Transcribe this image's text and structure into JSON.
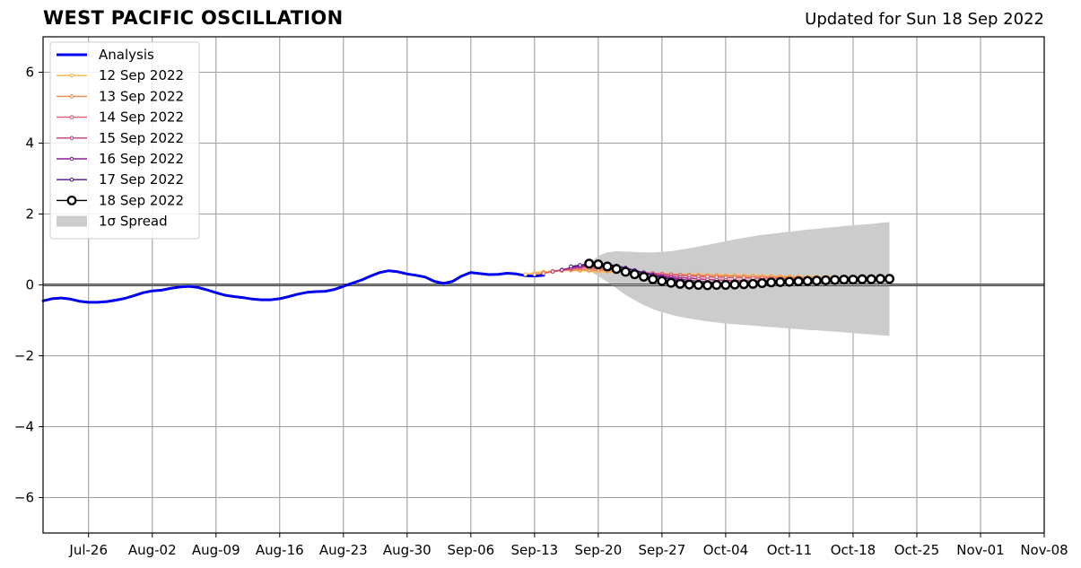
{
  "title": "WEST PACIFIC OSCILLATION",
  "subtitle": "Updated for Sun 18 Sep 2022",
  "chart_data": {
    "type": "line",
    "title": "WEST PACIFIC OSCILLATION",
    "subtitle": "Updated for Sun 18 Sep 2022",
    "x_axis": {
      "type": "date",
      "min": "2022-07-21",
      "max": "2022-11-08",
      "ticks": [
        "2022-07-26",
        "2022-08-02",
        "2022-08-09",
        "2022-08-16",
        "2022-08-23",
        "2022-08-30",
        "2022-09-06",
        "2022-09-13",
        "2022-09-20",
        "2022-09-27",
        "2022-10-04",
        "2022-10-11",
        "2022-10-18",
        "2022-10-25",
        "2022-11-01",
        "2022-11-08"
      ],
      "tick_labels": [
        "Jul-26",
        "Aug-02",
        "Aug-09",
        "Aug-16",
        "Aug-23",
        "Aug-30",
        "Sep-06",
        "Sep-13",
        "Sep-20",
        "Sep-27",
        "Oct-04",
        "Oct-11",
        "Oct-18",
        "Oct-25",
        "Nov-01",
        "Nov-08"
      ]
    },
    "y_axis": {
      "min": -7,
      "max": 7,
      "ticks": [
        -6,
        -4,
        -2,
        0,
        2,
        4,
        6
      ],
      "tick_labels": [
        "−6",
        "−4",
        "−2",
        "0",
        "2",
        "4",
        "6"
      ]
    },
    "grid": true,
    "zero_line": true,
    "legend": {
      "position": "top-left",
      "entries": [
        "Analysis",
        "12 Sep 2022",
        "13 Sep 2022",
        "14 Sep 2022",
        "15 Sep 2022",
        "16 Sep 2022",
        "17 Sep 2022",
        "18 Sep 2022",
        "1σ Spread"
      ]
    },
    "analysis": {
      "name": "Analysis",
      "color": "#0000ee",
      "x": [
        "2022-07-21",
        "2022-07-22",
        "2022-07-23",
        "2022-07-24",
        "2022-07-25",
        "2022-07-26",
        "2022-07-27",
        "2022-07-28",
        "2022-07-29",
        "2022-07-30",
        "2022-07-31",
        "2022-08-01",
        "2022-08-02",
        "2022-08-03",
        "2022-08-04",
        "2022-08-05",
        "2022-08-06",
        "2022-08-07",
        "2022-08-08",
        "2022-08-09",
        "2022-08-10",
        "2022-08-11",
        "2022-08-12",
        "2022-08-13",
        "2022-08-14",
        "2022-08-15",
        "2022-08-16",
        "2022-08-17",
        "2022-08-18",
        "2022-08-19",
        "2022-08-20",
        "2022-08-21",
        "2022-08-22",
        "2022-08-23",
        "2022-08-24",
        "2022-08-25",
        "2022-08-26",
        "2022-08-27",
        "2022-08-28",
        "2022-08-29",
        "2022-08-30",
        "2022-08-31",
        "2022-09-01",
        "2022-09-02",
        "2022-09-03",
        "2022-09-04",
        "2022-09-05",
        "2022-09-06",
        "2022-09-07",
        "2022-09-08",
        "2022-09-09",
        "2022-09-10",
        "2022-09-11",
        "2022-09-12",
        "2022-09-13",
        "2022-09-14"
      ],
      "y": [
        -0.45,
        -0.39,
        -0.37,
        -0.4,
        -0.46,
        -0.49,
        -0.49,
        -0.47,
        -0.43,
        -0.38,
        -0.3,
        -0.22,
        -0.17,
        -0.15,
        -0.1,
        -0.06,
        -0.04,
        -0.07,
        -0.14,
        -0.22,
        -0.29,
        -0.33,
        -0.36,
        -0.4,
        -0.42,
        -0.42,
        -0.39,
        -0.33,
        -0.26,
        -0.21,
        -0.19,
        -0.18,
        -0.13,
        -0.04,
        0.05,
        0.14,
        0.25,
        0.35,
        0.4,
        0.37,
        0.31,
        0.27,
        0.22,
        0.1,
        0.04,
        0.1,
        0.25,
        0.35,
        0.32,
        0.29,
        0.3,
        0.33,
        0.31,
        0.26,
        0.25,
        0.27
      ]
    },
    "forecasts": [
      {
        "name": "12 Sep 2022",
        "color": "#f9b640",
        "start": "2022-09-12",
        "values": [
          0.3,
          0.34,
          0.37,
          0.39,
          0.4,
          0.41,
          0.4,
          0.39,
          0.38,
          0.37,
          0.36,
          0.35,
          0.34,
          0.33,
          0.32,
          0.31,
          0.3,
          0.3,
          0.29,
          0.29,
          0.28,
          0.28,
          0.27,
          0.27,
          0.26,
          0.26,
          0.25,
          0.25,
          0.24,
          0.24,
          0.23,
          0.23,
          0.23,
          0.22,
          0.22
        ]
      },
      {
        "name": "13 Sep 2022",
        "color": "#f08a4b",
        "start": "2022-09-13",
        "values": [
          0.3,
          0.33,
          0.37,
          0.4,
          0.42,
          0.43,
          0.42,
          0.41,
          0.4,
          0.38,
          0.37,
          0.35,
          0.34,
          0.32,
          0.31,
          0.3,
          0.29,
          0.28,
          0.27,
          0.27,
          0.26,
          0.25,
          0.25,
          0.24,
          0.24,
          0.23,
          0.23,
          0.22,
          0.22,
          0.22,
          0.21,
          0.21,
          0.21,
          0.2,
          0.2
        ]
      },
      {
        "name": "14 Sep 2022",
        "color": "#e0586a",
        "start": "2022-09-14",
        "values": [
          0.33,
          0.38,
          0.42,
          0.45,
          0.47,
          0.47,
          0.46,
          0.44,
          0.42,
          0.4,
          0.37,
          0.35,
          0.33,
          0.31,
          0.29,
          0.27,
          0.26,
          0.24,
          0.23,
          0.22,
          0.21,
          0.21,
          0.2,
          0.19,
          0.19,
          0.19,
          0.18,
          0.18,
          0.18,
          0.18,
          0.18,
          0.18,
          0.18,
          0.18,
          0.19
        ]
      },
      {
        "name": "15 Sep 2022",
        "color": "#c2377e",
        "start": "2022-09-15",
        "values": [
          0.38,
          0.43,
          0.48,
          0.51,
          0.52,
          0.51,
          0.49,
          0.46,
          0.42,
          0.38,
          0.34,
          0.3,
          0.27,
          0.24,
          0.21,
          0.19,
          0.17,
          0.15,
          0.14,
          0.13,
          0.12,
          0.12,
          0.11,
          0.11,
          0.11,
          0.11,
          0.11,
          0.12,
          0.12,
          0.12,
          0.13,
          0.13,
          0.14,
          0.14,
          0.15
        ]
      },
      {
        "name": "16 Sep 2022",
        "color": "#8c1f97",
        "start": "2022-09-16",
        "values": [
          0.42,
          0.48,
          0.53,
          0.56,
          0.57,
          0.55,
          0.52,
          0.47,
          0.41,
          0.35,
          0.29,
          0.24,
          0.2,
          0.16,
          0.13,
          0.1,
          0.08,
          0.06,
          0.05,
          0.05,
          0.05,
          0.05,
          0.05,
          0.06,
          0.07,
          0.08,
          0.09,
          0.1,
          0.11,
          0.12,
          0.13,
          0.14,
          0.15,
          0.15,
          0.16
        ]
      },
      {
        "name": "17 Sep 2022",
        "color": "#4b1089",
        "start": "2022-09-17",
        "values": [
          0.52,
          0.56,
          0.59,
          0.6,
          0.58,
          0.54,
          0.48,
          0.41,
          0.34,
          0.27,
          0.21,
          0.16,
          0.12,
          0.08,
          0.06,
          0.04,
          0.03,
          0.02,
          0.02,
          0.03,
          0.04,
          0.05,
          0.06,
          0.07,
          0.08,
          0.1,
          0.11,
          0.12,
          0.13,
          0.14,
          0.15,
          0.16,
          0.17,
          0.17,
          0.18
        ]
      },
      {
        "name": "18 Sep 2022",
        "color": "#000000",
        "start": "2022-09-19",
        "values": [
          0.6,
          0.58,
          0.52,
          0.45,
          0.37,
          0.3,
          0.23,
          0.16,
          0.11,
          0.06,
          0.03,
          0.01,
          0.0,
          -0.01,
          0.0,
          0.0,
          0.01,
          0.02,
          0.03,
          0.05,
          0.07,
          0.08,
          0.09,
          0.1,
          0.11,
          0.12,
          0.13,
          0.14,
          0.15,
          0.15,
          0.16,
          0.16,
          0.17,
          0.17
        ]
      }
    ],
    "spread": {
      "name": "1σ Spread",
      "color": "#cccccc",
      "start": "2022-09-19",
      "upper": [
        0.6,
        0.82,
        0.92,
        0.95,
        0.94,
        0.93,
        0.92,
        0.92,
        0.93,
        0.95,
        0.99,
        1.03,
        1.08,
        1.13,
        1.18,
        1.23,
        1.28,
        1.33,
        1.37,
        1.41,
        1.44,
        1.47,
        1.5,
        1.53,
        1.56,
        1.58,
        1.61,
        1.63,
        1.66,
        1.68,
        1.7,
        1.72,
        1.75,
        1.77
      ],
      "lower": [
        0.4,
        0.25,
        0.08,
        -0.1,
        -0.28,
        -0.43,
        -0.57,
        -0.68,
        -0.77,
        -0.84,
        -0.9,
        -0.95,
        -0.99,
        -1.03,
        -1.06,
        -1.09,
        -1.11,
        -1.13,
        -1.15,
        -1.17,
        -1.19,
        -1.21,
        -1.23,
        -1.25,
        -1.27,
        -1.28,
        -1.3,
        -1.32,
        -1.34,
        -1.36,
        -1.38,
        -1.4,
        -1.42,
        -1.44
      ]
    }
  }
}
